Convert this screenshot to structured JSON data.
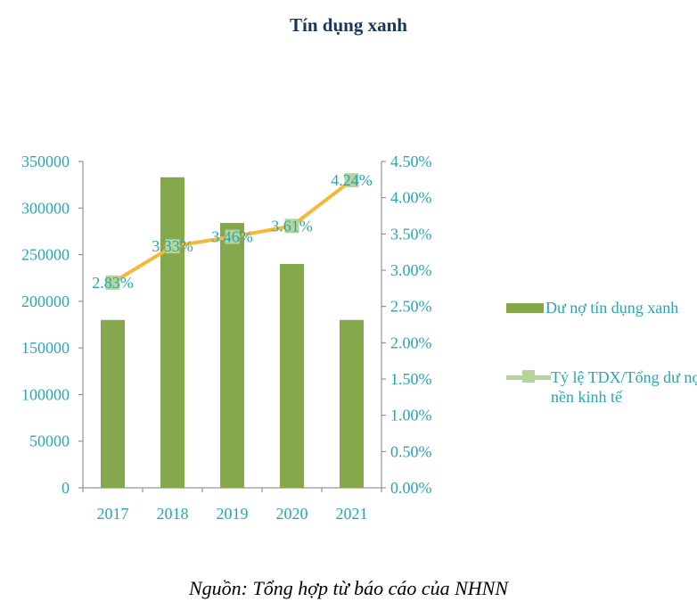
{
  "chart_data": {
    "type": "bar",
    "title": "Tín dụng xanh",
    "categories": [
      "2017",
      "2018",
      "2019",
      "2020",
      "2021"
    ],
    "series": [
      {
        "name": "Dư nợ tín dụng xanh",
        "type": "bar",
        "axis": "left",
        "values": [
          180000,
          333000,
          284000,
          240000,
          180000
        ],
        "color": "#86a84c"
      },
      {
        "name": "Tỷ lệ TDX/Tổng dư nợ nền kinh tế",
        "type": "line",
        "axis": "right",
        "values": [
          2.83,
          3.33,
          3.46,
          3.61,
          4.24
        ],
        "labels": [
          "2.83%",
          "3.33%",
          "3.46%",
          "3.61%",
          "4.24%"
        ],
        "color": "#f5b839",
        "marker_color": "#b5d49a"
      }
    ],
    "y_left": {
      "ylim": [
        0,
        350000
      ],
      "ticks": [
        "350000",
        "300000",
        "250000",
        "200000",
        "150000",
        "100000",
        "50000",
        "0"
      ]
    },
    "y_right": {
      "ylim": [
        0,
        4.5
      ],
      "ticks": [
        "4.50%",
        "4.00%",
        "3.50%",
        "3.00%",
        "2.50%",
        "2.00%",
        "1.50%",
        "1.00%",
        "0.50%",
        "0.00%"
      ]
    },
    "grid": false,
    "legend_position": "right",
    "axis_text_color": "#2aa6b0"
  },
  "source": "Nguồn: Tổng hợp từ báo cáo của NHNN"
}
